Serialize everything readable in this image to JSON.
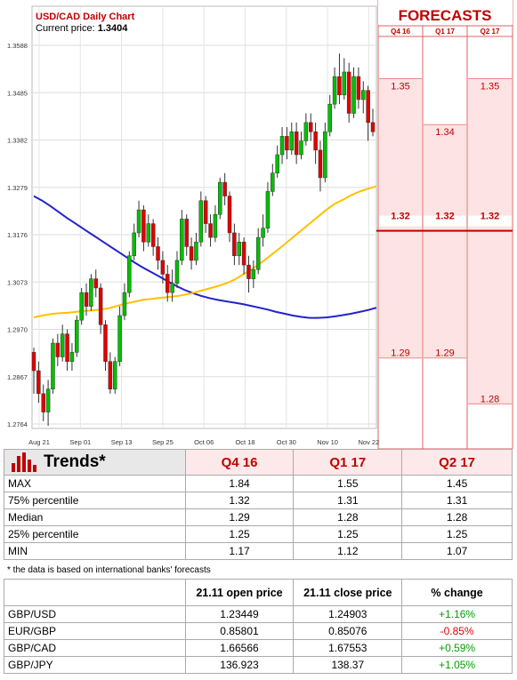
{
  "chart_data": {
    "type": "candlestick",
    "title": "USD/CAD Daily Chart",
    "current_price_label": "Current price:",
    "current_price": "1.3404",
    "y_ticks": [
      "1.3588",
      "1.3485",
      "1.3382",
      "1.3279",
      "1.3176",
      "1.3073",
      "1.2970",
      "1.2867",
      "1.2764"
    ],
    "ylim": [
      1.2764,
      1.3588
    ],
    "x_ticks": [
      "Aug 21",
      "Sep 01",
      "Sep 13",
      "Sep 25",
      "Oct 06",
      "Oct 18",
      "Oct 30",
      "Nov 10",
      "Nov 22"
    ],
    "grid": true,
    "candles": [
      [
        1.292,
        1.288,
        1.293,
        1.283
      ],
      [
        1.288,
        1.283,
        1.29,
        1.281
      ],
      [
        1.283,
        1.279,
        1.285,
        1.277
      ],
      [
        1.279,
        1.284,
        1.286,
        1.276
      ],
      [
        1.284,
        1.294,
        1.295,
        1.283
      ],
      [
        1.294,
        1.291,
        1.296,
        1.289
      ],
      [
        1.291,
        1.296,
        1.298,
        1.29
      ],
      [
        1.296,
        1.29,
        1.297,
        1.288
      ],
      [
        1.29,
        1.292,
        1.294,
        1.288
      ],
      [
        1.292,
        1.299,
        1.3,
        1.291
      ],
      [
        1.299,
        1.305,
        1.306,
        1.298
      ],
      [
        1.305,
        1.302,
        1.307,
        1.3
      ],
      [
        1.302,
        1.308,
        1.309,
        1.301
      ],
      [
        1.308,
        1.306,
        1.31,
        1.304
      ],
      [
        1.306,
        1.298,
        1.307,
        1.296
      ],
      [
        1.298,
        1.29,
        1.299,
        1.288
      ],
      [
        1.29,
        1.284,
        1.292,
        1.283
      ],
      [
        1.284,
        1.29,
        1.291,
        1.283
      ],
      [
        1.29,
        1.3,
        1.302,
        1.289
      ],
      [
        1.3,
        1.305,
        1.307,
        1.299
      ],
      [
        1.305,
        1.313,
        1.314,
        1.304
      ],
      [
        1.313,
        1.318,
        1.32,
        1.312
      ],
      [
        1.318,
        1.323,
        1.325,
        1.317
      ],
      [
        1.323,
        1.316,
        1.324,
        1.314
      ],
      [
        1.316,
        1.32,
        1.322,
        1.315
      ],
      [
        1.32,
        1.315,
        1.321,
        1.313
      ],
      [
        1.315,
        1.312,
        1.317,
        1.31
      ],
      [
        1.312,
        1.309,
        1.314,
        1.307
      ],
      [
        1.309,
        1.305,
        1.311,
        1.303
      ],
      [
        1.305,
        1.307,
        1.31,
        1.303
      ],
      [
        1.307,
        1.312,
        1.314,
        1.306
      ],
      [
        1.312,
        1.321,
        1.323,
        1.311
      ],
      [
        1.321,
        1.315,
        1.322,
        1.313
      ],
      [
        1.315,
        1.312,
        1.317,
        1.31
      ],
      [
        1.312,
        1.316,
        1.318,
        1.311
      ],
      [
        1.316,
        1.325,
        1.327,
        1.315
      ],
      [
        1.325,
        1.32,
        1.326,
        1.318
      ],
      [
        1.32,
        1.317,
        1.322,
        1.315
      ],
      [
        1.317,
        1.322,
        1.324,
        1.316
      ],
      [
        1.322,
        1.329,
        1.33,
        1.321
      ],
      [
        1.329,
        1.326,
        1.331,
        1.324
      ],
      [
        1.326,
        1.318,
        1.327,
        1.316
      ],
      [
        1.318,
        1.313,
        1.32,
        1.311
      ],
      [
        1.313,
        1.316,
        1.318,
        1.311
      ],
      [
        1.316,
        1.311,
        1.317,
        1.309
      ],
      [
        1.311,
        1.308,
        1.313,
        1.305
      ],
      [
        1.308,
        1.31,
        1.312,
        1.306
      ],
      [
        1.31,
        1.317,
        1.319,
        1.309
      ],
      [
        1.317,
        1.319,
        1.322,
        1.315
      ],
      [
        1.319,
        1.327,
        1.329,
        1.318
      ],
      [
        1.327,
        1.331,
        1.333,
        1.326
      ],
      [
        1.331,
        1.335,
        1.337,
        1.33
      ],
      [
        1.335,
        1.339,
        1.341,
        1.333
      ],
      [
        1.339,
        1.336,
        1.341,
        1.334
      ],
      [
        1.336,
        1.34,
        1.342,
        1.335
      ],
      [
        1.34,
        1.335,
        1.342,
        1.333
      ],
      [
        1.335,
        1.338,
        1.34,
        1.334
      ],
      [
        1.338,
        1.342,
        1.344,
        1.337
      ],
      [
        1.342,
        1.34,
        1.344,
        1.338
      ],
      [
        1.34,
        1.336,
        1.342,
        1.333
      ],
      [
        1.336,
        1.33,
        1.338,
        1.327
      ],
      [
        1.33,
        1.34,
        1.342,
        1.329
      ],
      [
        1.34,
        1.346,
        1.348,
        1.339
      ],
      [
        1.346,
        1.352,
        1.354,
        1.345
      ],
      [
        1.352,
        1.348,
        1.357,
        1.346
      ],
      [
        1.348,
        1.353,
        1.356,
        1.347
      ],
      [
        1.353,
        1.344,
        1.355,
        1.342
      ],
      [
        1.344,
        1.352,
        1.354,
        1.343
      ],
      [
        1.352,
        1.347,
        1.354,
        1.345
      ],
      [
        1.347,
        1.349,
        1.351,
        1.344
      ],
      [
        1.349,
        1.342,
        1.35,
        1.338
      ],
      [
        1.342,
        1.34,
        1.345,
        1.339
      ]
    ],
    "ma_blue": [
      1.326,
      1.325,
      1.3238,
      1.3225,
      1.3212,
      1.32,
      1.3188,
      1.3176,
      1.3164,
      1.3152,
      1.314,
      1.3128,
      1.3116,
      1.3105,
      1.3095,
      1.3085,
      1.3075,
      1.3065,
      1.3056,
      1.3049,
      1.3043,
      1.3038,
      1.3034,
      1.3031,
      1.3028,
      1.3025,
      1.3021,
      1.3017,
      1.3013,
      1.3008,
      1.3004,
      1.3,
      1.2997,
      1.2995,
      1.2995,
      1.2996,
      1.2998,
      1.3001,
      1.3004,
      1.3008,
      1.3012,
      1.3017
    ],
    "ma_yellow": [
      1.2996,
      1.3,
      1.3003,
      1.3005,
      1.3006,
      1.3008,
      1.301,
      1.3011,
      1.3013,
      1.3016,
      1.3021,
      1.3026,
      1.303,
      1.3034,
      1.3036,
      1.3038,
      1.304,
      1.3042,
      1.3045,
      1.3049,
      1.3054,
      1.3059,
      1.3064,
      1.307,
      1.3078,
      1.3089,
      1.31,
      1.3112,
      1.3126,
      1.314,
      1.3155,
      1.317,
      1.3185,
      1.32,
      1.3215,
      1.323,
      1.3243,
      1.3252,
      1.3262,
      1.327,
      1.3276,
      1.3281
    ]
  },
  "forecasts": {
    "header": "FORECASTS",
    "columns": [
      "Q4 16",
      "Q1 17",
      "Q2 17"
    ],
    "high_labels": [
      "1.35",
      "1.34",
      "1.35"
    ],
    "high_values": [
      1.35,
      1.34,
      1.35
    ],
    "mid_labels": [
      "1.32",
      "1.32",
      "1.32"
    ],
    "mid_values": [
      1.32,
      1.32,
      1.32
    ],
    "low_labels": [
      "1.29",
      "1.29",
      "1.28"
    ],
    "low_values": [
      1.29,
      1.29,
      1.28
    ]
  },
  "trends": {
    "title": "Trends*",
    "columns": [
      "Q4 16",
      "Q1 17",
      "Q2 17"
    ],
    "rows": [
      {
        "label": "MAX",
        "values": [
          "1.84",
          "1.55",
          "1.45"
        ]
      },
      {
        "label": "75% percentile",
        "values": [
          "1.32",
          "1.31",
          "1.31"
        ]
      },
      {
        "label": "Median",
        "values": [
          "1.29",
          "1.28",
          "1.28"
        ]
      },
      {
        "label": "25% percentile",
        "values": [
          "1.25",
          "1.25",
          "1.25"
        ]
      },
      {
        "label": "MIN",
        "values": [
          "1.17",
          "1.12",
          "1.07"
        ]
      }
    ],
    "note": "* the data is based on international banks' forecasts"
  },
  "changes": {
    "columns": [
      "21.11 open price",
      "21.11 close price",
      "% change"
    ],
    "rows": [
      {
        "pair": "GBP/USD",
        "open": "1.23449",
        "close": "1.24903",
        "change": "+1.16%",
        "dir": "pos"
      },
      {
        "pair": "EUR/GBP",
        "open": "0.85801",
        "close": "0.85076",
        "change": "-0.85%",
        "dir": "neg"
      },
      {
        "pair": "GBP/CAD",
        "open": "1.66566",
        "close": "1.67553",
        "change": "+0.59%",
        "dir": "pos"
      },
      {
        "pair": "GBP/JPY",
        "open": "136.923",
        "close": "138.37",
        "change": "+1.05%",
        "dir": "pos"
      }
    ]
  },
  "colors": {
    "up": "#00c000",
    "down": "#e00000",
    "ma_blue": "#2222cc",
    "ma_yellow": "#ffc000",
    "accent": "#c00000"
  }
}
